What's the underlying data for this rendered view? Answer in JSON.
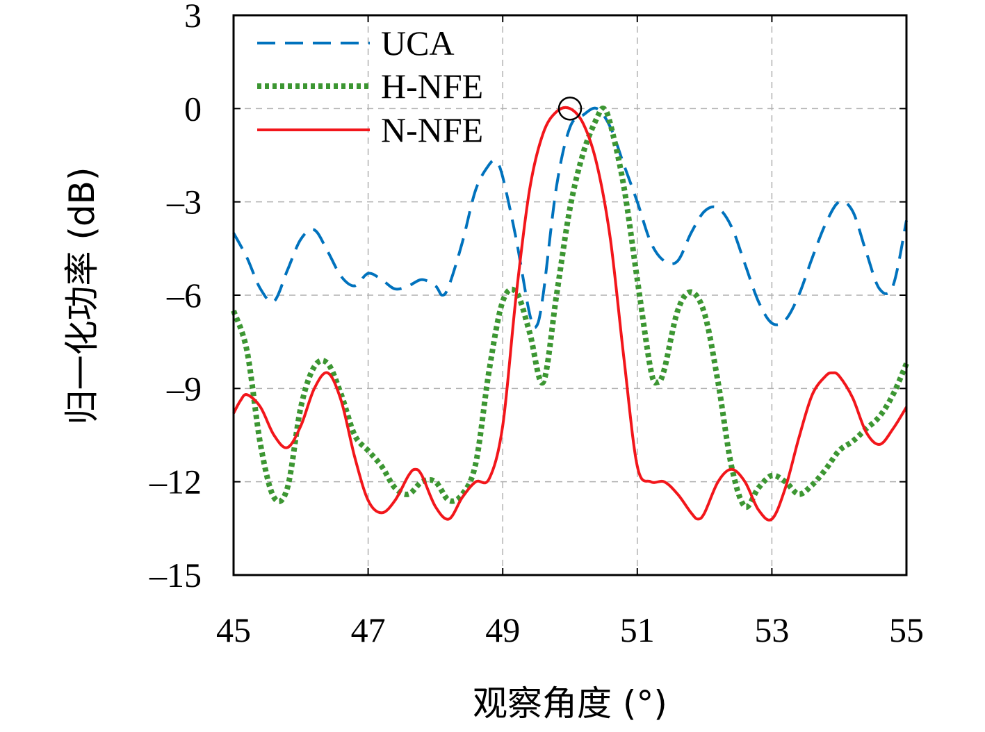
{
  "chart_data": {
    "type": "line",
    "title": "",
    "xlabel": "观察角度 (°)",
    "ylabel": "归一化功率 (dB)",
    "xlim": [
      45,
      55
    ],
    "ylim": [
      -15,
      3
    ],
    "xticks": [
      45,
      47,
      49,
      51,
      53,
      55
    ],
    "yticks": [
      3,
      0,
      -3,
      -6,
      -9,
      -12,
      -15
    ],
    "xtick_labels": [
      "45",
      "47",
      "49",
      "51",
      "53",
      "55"
    ],
    "ytick_labels": [
      "3",
      "0",
      "–3",
      "–6",
      "–9",
      "–12",
      "–15"
    ],
    "grid": true,
    "legend_position": "top-left",
    "series": [
      {
        "name": "UCA",
        "color": "#0072BD",
        "style": "dashed",
        "x": [
          45.0,
          45.2,
          45.4,
          45.6,
          45.8,
          46.0,
          46.2,
          46.4,
          46.6,
          46.8,
          47.0,
          47.2,
          47.4,
          47.6,
          47.8,
          48.0,
          48.1,
          48.2,
          48.4,
          48.6,
          48.8,
          48.9,
          49.0,
          49.2,
          49.4,
          49.5,
          49.6,
          49.8,
          50.0,
          50.2,
          50.4,
          50.6,
          50.8,
          51.0,
          51.2,
          51.4,
          51.6,
          51.8,
          52.0,
          52.2,
          52.4,
          52.6,
          52.8,
          53.0,
          53.2,
          53.4,
          53.6,
          53.8,
          54.0,
          54.2,
          54.4,
          54.6,
          54.8,
          55.0
        ],
        "y": [
          -4.0,
          -4.8,
          -5.8,
          -6.2,
          -5.2,
          -4.2,
          -3.9,
          -4.6,
          -5.4,
          -5.7,
          -5.3,
          -5.5,
          -5.8,
          -5.7,
          -5.5,
          -5.7,
          -6.0,
          -5.7,
          -4.3,
          -2.6,
          -1.8,
          -1.7,
          -2.2,
          -4.2,
          -6.6,
          -7.0,
          -6.0,
          -2.5,
          -0.6,
          -0.2,
          0.0,
          -0.6,
          -1.8,
          -3.0,
          -4.3,
          -4.9,
          -4.9,
          -4.0,
          -3.3,
          -3.2,
          -3.8,
          -5.0,
          -6.2,
          -6.9,
          -6.8,
          -6.0,
          -4.8,
          -3.7,
          -3.0,
          -3.3,
          -4.6,
          -5.8,
          -5.7,
          -3.6
        ]
      },
      {
        "name": "H-NFE",
        "color": "#3C9632",
        "style": "dotted",
        "x": [
          45.0,
          45.2,
          45.4,
          45.6,
          45.8,
          46.0,
          46.2,
          46.4,
          46.6,
          46.8,
          47.0,
          47.2,
          47.4,
          47.6,
          47.8,
          48.0,
          48.2,
          48.4,
          48.6,
          48.8,
          49.0,
          49.2,
          49.4,
          49.6,
          49.8,
          50.0,
          50.2,
          50.4,
          50.5,
          50.6,
          50.8,
          51.0,
          51.2,
          51.3,
          51.4,
          51.6,
          51.8,
          52.0,
          52.2,
          52.4,
          52.6,
          52.8,
          53.0,
          53.2,
          53.4,
          53.6,
          53.8,
          54.0,
          54.2,
          54.4,
          54.6,
          54.8,
          55.0
        ],
        "y": [
          -6.5,
          -7.8,
          -10.8,
          -12.5,
          -12.2,
          -9.6,
          -8.3,
          -8.2,
          -9.2,
          -10.5,
          -11.0,
          -11.5,
          -12.2,
          -12.4,
          -12.0,
          -12.0,
          -12.6,
          -12.4,
          -11.4,
          -8.4,
          -6.2,
          -5.9,
          -7.2,
          -8.8,
          -6.0,
          -3.2,
          -1.4,
          -0.3,
          0.0,
          -0.5,
          -2.5,
          -5.5,
          -8.4,
          -8.8,
          -8.4,
          -6.5,
          -5.9,
          -6.6,
          -8.8,
          -11.5,
          -12.8,
          -12.2,
          -11.8,
          -12.0,
          -12.4,
          -12.1,
          -11.6,
          -11.0,
          -10.7,
          -10.3,
          -9.9,
          -9.2,
          -8.2
        ]
      },
      {
        "name": "N-NFE",
        "color": "#F2161B",
        "style": "solid",
        "x": [
          45.0,
          45.1,
          45.2,
          45.4,
          45.6,
          45.8,
          46.0,
          46.2,
          46.4,
          46.6,
          46.8,
          47.0,
          47.2,
          47.4,
          47.6,
          47.7,
          47.8,
          48.0,
          48.2,
          48.4,
          48.6,
          48.8,
          49.0,
          49.2,
          49.4,
          49.6,
          49.8,
          50.0,
          50.2,
          50.4,
          50.6,
          50.8,
          51.0,
          51.2,
          51.4,
          51.6,
          51.8,
          51.9,
          52.0,
          52.2,
          52.4,
          52.6,
          52.8,
          53.0,
          53.2,
          53.4,
          53.6,
          53.8,
          53.9,
          54.0,
          54.2,
          54.4,
          54.6,
          54.8,
          55.0
        ],
        "y": [
          -9.8,
          -9.4,
          -9.2,
          -9.6,
          -10.5,
          -10.9,
          -10.2,
          -9.0,
          -8.5,
          -9.4,
          -11.2,
          -12.6,
          -13.0,
          -12.6,
          -11.8,
          -11.6,
          -11.8,
          -12.8,
          -13.2,
          -12.5,
          -12.0,
          -11.9,
          -10.2,
          -6.0,
          -2.6,
          -0.8,
          -0.1,
          0.0,
          -0.5,
          -1.8,
          -4.2,
          -8.0,
          -11.5,
          -12.0,
          -12.0,
          -12.4,
          -13.0,
          -13.2,
          -13.0,
          -12.0,
          -11.6,
          -12.0,
          -12.9,
          -13.2,
          -12.2,
          -10.6,
          -9.2,
          -8.6,
          -8.5,
          -8.6,
          -9.3,
          -10.4,
          -10.8,
          -10.3,
          -9.6
        ]
      }
    ],
    "annotations": [
      {
        "type": "circle-marker",
        "x": 50.0,
        "y": 0.0
      }
    ]
  }
}
